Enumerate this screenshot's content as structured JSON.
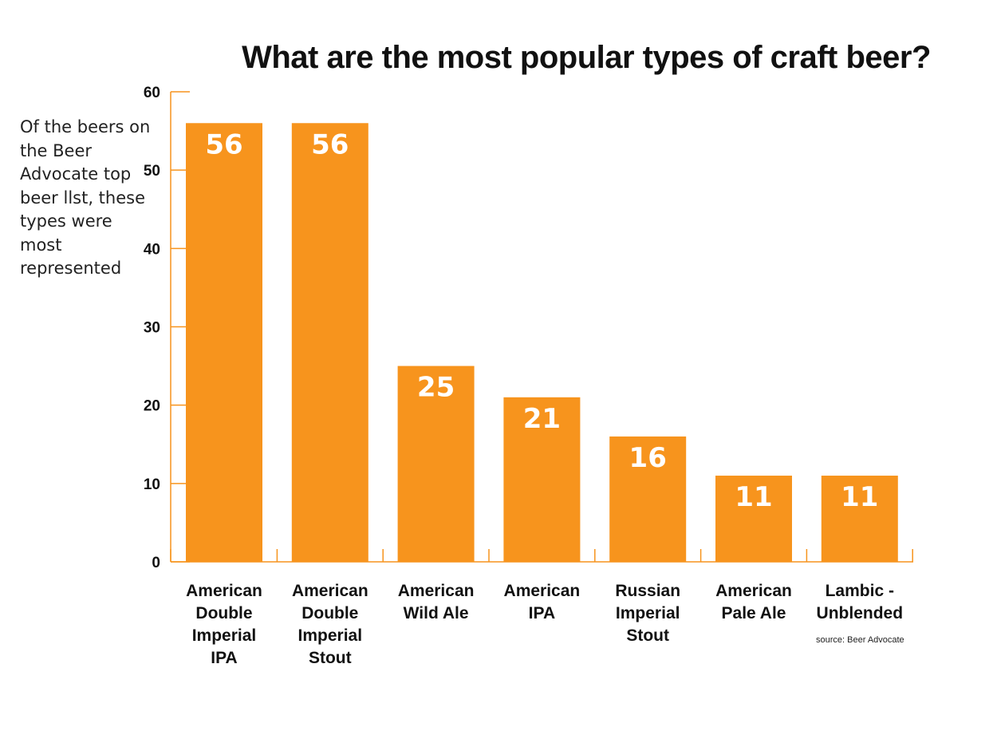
{
  "chart_data": {
    "type": "bar",
    "title": "What are the most popular types of craft beer?",
    "subtitle": "Of the beers on the Beer Advocate top beer llst, these types were most represented",
    "source": "source: Beer Advocate",
    "categories": [
      "American Double Imperial IPA",
      "American Double Imperial Stout",
      "American Wild Ale",
      "American IPA",
      "Russian Imperial Stout",
      "American Pale Ale",
      "Lambic - Unblended"
    ],
    "category_lines": [
      [
        "American",
        "Double",
        "Imperial",
        "IPA"
      ],
      [
        "American",
        "Double",
        "Imperial",
        "Stout"
      ],
      [
        "American",
        "Wild Ale"
      ],
      [
        "American",
        "IPA"
      ],
      [
        "Russian",
        "Imperial",
        "Stout"
      ],
      [
        "American",
        "Pale Ale"
      ],
      [
        "Lambic -",
        "Unblended"
      ]
    ],
    "values": [
      56,
      56,
      25,
      21,
      16,
      11,
      11
    ],
    "yticks": [
      0,
      10,
      20,
      30,
      40,
      50,
      60
    ],
    "ylim": [
      0,
      60
    ],
    "xlabel": "",
    "ylabel": "",
    "grid": false,
    "legend": "none",
    "bar_color": "#f7941d",
    "axis_color": "#f7941d",
    "label_color": "#ffffff"
  }
}
